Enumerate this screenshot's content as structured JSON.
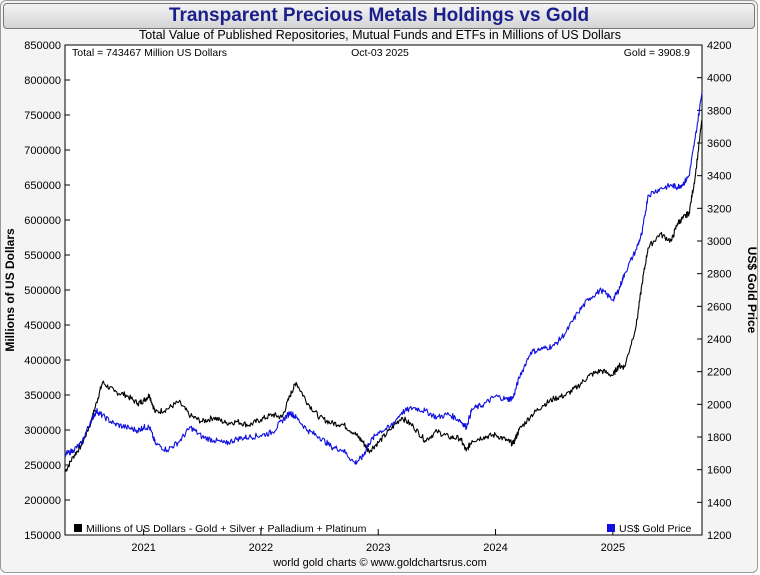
{
  "header": {
    "title": "Transparent Precious Metals Holdings vs Gold",
    "subtitle": "Total Value of Published Repositories, Mutual Funds and ETFs in Millions of US Dollars",
    "footer": "world gold charts © www.goldchartsrus.com"
  },
  "info": {
    "total": "Total = 743467 Million US Dollars",
    "date": "Oct-03  2025",
    "gold": "Gold = 3908.9"
  },
  "colors": {
    "holdings": "#000000",
    "gold": "#1010e0",
    "title": "#1a1f8c"
  },
  "chart_data": {
    "type": "line",
    "title": "Transparent Precious Metals Holdings vs Gold",
    "ylabel": "Millions of US Dollars",
    "y2label": "US$ Gold Price",
    "xlim": [
      2020.33,
      2025.76
    ],
    "ylim": [
      150000,
      850000
    ],
    "y2lim": [
      1200,
      4200
    ],
    "x_ticks": [
      2021,
      2022,
      2023,
      2024,
      2025
    ],
    "x_tick_labels": [
      "2021",
      "2022",
      "2023",
      "2024",
      "2025"
    ],
    "y_ticks": [
      150000,
      200000,
      250000,
      300000,
      350000,
      400000,
      450000,
      500000,
      550000,
      600000,
      650000,
      700000,
      750000,
      800000,
      850000
    ],
    "y_tick_labels": [
      "150000",
      "200000",
      "250000",
      "300000",
      "350000",
      "400000",
      "450000",
      "500000",
      "550000",
      "600000",
      "650000",
      "700000",
      "750000",
      "800000",
      "850000"
    ],
    "y2_ticks": [
      1200,
      1400,
      1600,
      1800,
      2000,
      2200,
      2400,
      2600,
      2800,
      3000,
      3200,
      3400,
      3600,
      3800,
      4000,
      4200
    ],
    "y2_tick_labels": [
      "1200",
      "1400",
      "1600",
      "1800",
      "2000",
      "2200",
      "2400",
      "2600",
      "2800",
      "3000",
      "3200",
      "3400",
      "3600",
      "3800",
      "4000",
      "4200"
    ],
    "series": [
      {
        "name": "Millions of US Dollars - Gold + Silver + Palladium + Platinum",
        "axis": "left",
        "color": "#000000",
        "x": [
          2020.33,
          2020.4,
          2020.47,
          2020.55,
          2020.6,
          2020.65,
          2020.75,
          2020.85,
          2020.95,
          2021.0,
          2021.05,
          2021.1,
          2021.2,
          2021.3,
          2021.4,
          2021.5,
          2021.6,
          2021.7,
          2021.8,
          2021.9,
          2022.0,
          2022.1,
          2022.18,
          2022.25,
          2022.3,
          2022.4,
          2022.5,
          2022.6,
          2022.7,
          2022.8,
          2022.87,
          2022.92,
          2023.0,
          2023.1,
          2023.2,
          2023.3,
          2023.4,
          2023.5,
          2023.6,
          2023.7,
          2023.75,
          2023.8,
          2023.9,
          2024.0,
          2024.1,
          2024.15,
          2024.2,
          2024.3,
          2024.4,
          2024.5,
          2024.6,
          2024.7,
          2024.8,
          2024.9,
          2025.0,
          2025.05,
          2025.1,
          2025.2,
          2025.25,
          2025.3,
          2025.4,
          2025.5,
          2025.55,
          2025.6,
          2025.65,
          2025.7,
          2025.76
        ],
        "values": [
          240000,
          262000,
          278000,
          310000,
          340000,
          368000,
          355000,
          350000,
          338000,
          342000,
          350000,
          325000,
          330000,
          340000,
          320000,
          312000,
          318000,
          310000,
          312000,
          307000,
          315000,
          322000,
          318000,
          350000,
          368000,
          338000,
          318000,
          310000,
          308000,
          295000,
          283000,
          270000,
          282000,
          300000,
          318000,
          305000,
          285000,
          298000,
          290000,
          288000,
          270000,
          285000,
          290000,
          293000,
          285000,
          280000,
          300000,
          320000,
          335000,
          345000,
          350000,
          362000,
          378000,
          385000,
          378000,
          392000,
          390000,
          450000,
          510000,
          560000,
          580000,
          570000,
          595000,
          603000,
          610000,
          660000,
          743467
        ]
      },
      {
        "name": "US$ Gold Price",
        "axis": "right",
        "color": "#1010e0",
        "x": [
          2020.33,
          2020.4,
          2020.47,
          2020.55,
          2020.6,
          2020.65,
          2020.75,
          2020.85,
          2020.95,
          2021.0,
          2021.05,
          2021.1,
          2021.2,
          2021.3,
          2021.4,
          2021.5,
          2021.6,
          2021.7,
          2021.8,
          2021.9,
          2022.0,
          2022.1,
          2022.18,
          2022.25,
          2022.3,
          2022.4,
          2022.5,
          2022.6,
          2022.7,
          2022.8,
          2022.87,
          2022.92,
          2023.0,
          2023.1,
          2023.2,
          2023.3,
          2023.4,
          2023.5,
          2023.6,
          2023.7,
          2023.75,
          2023.8,
          2023.9,
          2024.0,
          2024.1,
          2024.15,
          2024.2,
          2024.3,
          2024.4,
          2024.5,
          2024.6,
          2024.7,
          2024.8,
          2024.9,
          2025.0,
          2025.05,
          2025.1,
          2025.2,
          2025.25,
          2025.3,
          2025.4,
          2025.5,
          2025.55,
          2025.6,
          2025.65,
          2025.7,
          2025.76
        ],
        "values": [
          1690,
          1720,
          1760,
          1900,
          1960,
          1930,
          1880,
          1860,
          1840,
          1860,
          1860,
          1760,
          1720,
          1770,
          1860,
          1800,
          1780,
          1760,
          1790,
          1800,
          1810,
          1830,
          1900,
          1950,
          1920,
          1840,
          1800,
          1740,
          1720,
          1640,
          1680,
          1760,
          1830,
          1860,
          1950,
          1980,
          1960,
          1920,
          1940,
          1900,
          1860,
          1970,
          2000,
          2050,
          2030,
          2040,
          2160,
          2320,
          2340,
          2360,
          2440,
          2560,
          2650,
          2700,
          2640,
          2700,
          2800,
          2950,
          3050,
          3280,
          3320,
          3340,
          3330,
          3350,
          3400,
          3620,
          3908.9
        ]
      }
    ]
  },
  "legend": {
    "holdings": "Millions of US Dollars - Gold + Silver + Palladium + Platinum",
    "gold": "US$ Gold Price"
  }
}
